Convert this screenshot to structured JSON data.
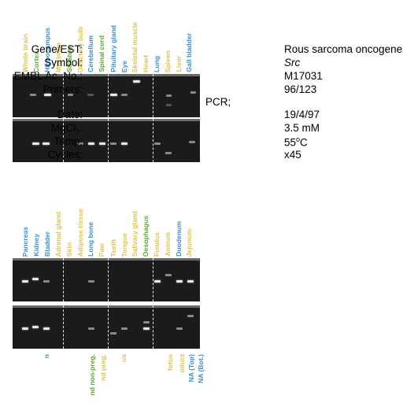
{
  "colors": {
    "yellow": "#e2c34a",
    "green": "#5fa832",
    "blue": "#3c8fd2",
    "gel": "#1b1b1b",
    "band": "#e8e8e8"
  },
  "lanes_group1": [
    {
      "label": "Whole brain",
      "color": "yellow"
    },
    {
      "label": "Cortex",
      "color": "green"
    },
    {
      "label": "Hippocampus",
      "color": "blue"
    },
    {
      "label": "Mid brain",
      "color": "yellow"
    },
    {
      "label": "Striatum",
      "color": "green"
    },
    {
      "label": "Olfactory bulb",
      "color": "yellow"
    },
    {
      "label": "Cerebellum",
      "color": "blue"
    },
    {
      "label": "Spinal cord",
      "color": "green"
    },
    {
      "label": "Pituitary gland",
      "color": "blue"
    },
    {
      "label": "Eye",
      "color": "blue"
    },
    {
      "label": "Skeletal  muscle",
      "color": "yellow"
    },
    {
      "label": "Heart",
      "color": "yellow"
    },
    {
      "label": "Lung",
      "color": "blue"
    },
    {
      "label": "Spleen",
      "color": "yellow"
    },
    {
      "label": "Liver",
      "color": "yellow"
    },
    {
      "label": "Gall bladder",
      "color": "blue"
    }
  ],
  "lanes_group2": [
    {
      "label": "Pancreas",
      "color": "blue"
    },
    {
      "label": "Kidney",
      "color": "blue"
    },
    {
      "label": "Bladder",
      "color": "blue"
    },
    {
      "label": "Adrenal gland",
      "color": "yellow"
    },
    {
      "label": "Skin",
      "color": "yellow"
    },
    {
      "label": "Adipose tissue",
      "color": "yellow"
    },
    {
      "label": "Long bone",
      "color": "blue"
    },
    {
      "label": "Paw",
      "color": "yellow"
    },
    {
      "label": "Teeth",
      "color": "yellow"
    },
    {
      "label": "Tongue",
      "color": "yellow"
    },
    {
      "label": "Salivary gland",
      "color": "yellow"
    },
    {
      "label": "Oesophagus",
      "color": "green"
    },
    {
      "label": "Fundus",
      "color": "yellow"
    },
    {
      "label": "Antrum",
      "color": "yellow"
    },
    {
      "label": "Duodenum",
      "color": "blue"
    },
    {
      "label": "Jejunum",
      "color": "yellow"
    }
  ],
  "lanes_group3": [
    {
      "label": "n",
      "color": "blue"
    },
    {
      "label": "nd non-preg.",
      "color": "green"
    },
    {
      "label": "nd preg.",
      "color": "yellow"
    },
    {
      "label": "us",
      "color": "yellow"
    },
    {
      "label": "fotus",
      "color": "yellow"
    },
    {
      "label": "oduct",
      "color": "yellow"
    },
    {
      "label": "NA (Top)",
      "color": "blue"
    },
    {
      "label": "NA (Bot.)",
      "color": "blue"
    }
  ],
  "info": {
    "gene_label": "Gene/EST:",
    "gene_value": "Rous sarcoma oncogene",
    "symbol_label": "Symbol:",
    "symbol_value": "Src",
    "embl_label": "EMBL Ac. No.:",
    "embl_value": "M17031",
    "primers_label": "Primers:",
    "primers_value": "96/123",
    "pcr_label": "PCR;",
    "date_label": "Date:",
    "date_value": "19/4/97",
    "mgcl_label_main": "MgCl",
    "mgcl_label_sub": "2",
    "mgcl_label_colon": ":",
    "mgcl_value": "3.5 mM",
    "temp_label": "Temp:",
    "temp_value_num": "55",
    "temp_value_sup": "o",
    "temp_value_unit": "C",
    "cycles_label": "Cycles:",
    "cycles_value": "x45"
  }
}
